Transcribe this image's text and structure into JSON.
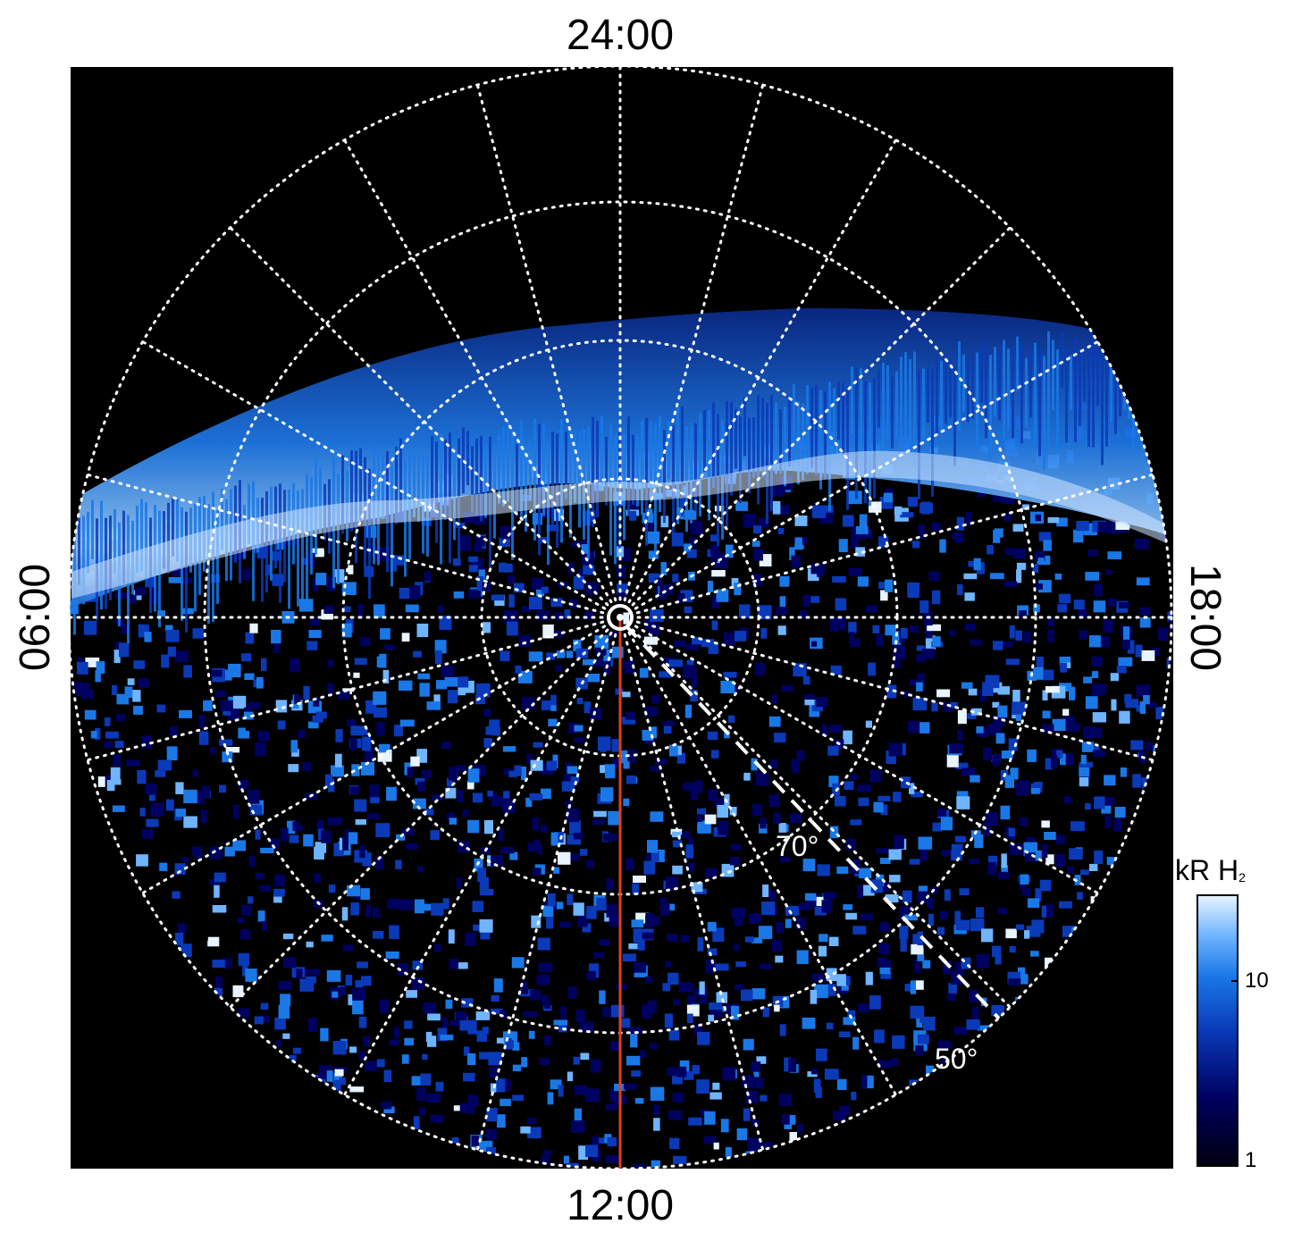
{
  "map": {
    "local_time_labels": {
      "top": "24:00",
      "bottom": "12:00",
      "left": "06:00",
      "right": "18:00"
    },
    "latitude_labels": [
      "70°",
      "50°"
    ],
    "colors": {
      "background": "#000000",
      "grid": "#ffffff",
      "meridian_line": "#e0401a",
      "reference_line": "#ffffff"
    }
  },
  "colorbar": {
    "title": "kR H",
    "title_subscript": "2",
    "scale": "log",
    "ticks": [
      "10",
      "1"
    ],
    "colormap": [
      "#000010",
      "#000060",
      "#0a3ab8",
      "#1a78e6",
      "#6fb4ff",
      "#e8f4ff"
    ]
  }
}
